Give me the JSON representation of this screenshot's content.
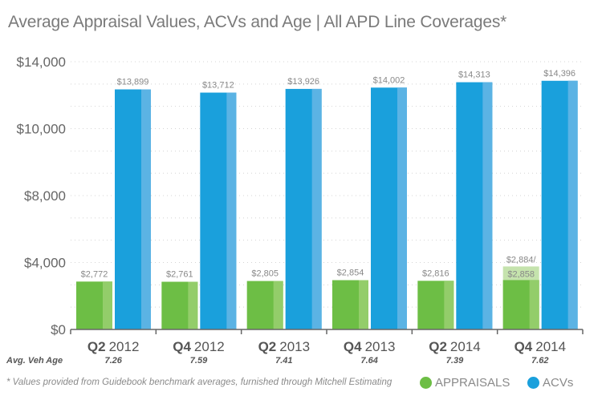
{
  "chart_data": {
    "type": "bar",
    "title": "Average Appraisal Values, ACVs and Age  |  All APD Line Coverages*",
    "categories": [
      {
        "quarter": "Q2",
        "year": "2012"
      },
      {
        "quarter": "Q4",
        "year": "2012"
      },
      {
        "quarter": "Q2",
        "year": "2013"
      },
      {
        "quarter": "Q4",
        "year": "2013"
      },
      {
        "quarter": "Q2",
        "year": "2014"
      },
      {
        "quarter": "Q4",
        "year": "2014"
      }
    ],
    "series": [
      {
        "name": "APPRAISALS",
        "color": "#6dbe45",
        "values": [
          2772,
          2761,
          2805,
          2854,
          2816,
          2858
        ],
        "labels": [
          "$2,772",
          "$2,761",
          "$2,805",
          "$2,854",
          "$2,816",
          "$2,858"
        ]
      },
      {
        "name": "ACVs",
        "color": "#1aa0dc",
        "values": [
          13899,
          13712,
          13926,
          14002,
          14313,
          14396
        ],
        "labels": [
          "$13,899",
          "$13,712",
          "$13,926",
          "$14,002",
          "$14,313",
          "$14,396"
        ]
      }
    ],
    "extra_appraisal": {
      "category_index": 5,
      "value": 2884,
      "label": "$2,884/"
    },
    "ytick_labels": [
      "$0",
      "$4,000",
      "$8,000",
      "$10,000",
      "$14,000"
    ],
    "ylim": [
      0,
      15500
    ],
    "grid": "dotted horizontal",
    "row_label": "Avg. Veh Age",
    "ages": [
      "7.26",
      "7.59",
      "7.41",
      "7.64",
      "7.39",
      "7.62"
    ],
    "legend_position": "bottom-right"
  },
  "footnote": "* Values provided from Guidebook benchmark averages, furnished through Mitchell Estimating"
}
